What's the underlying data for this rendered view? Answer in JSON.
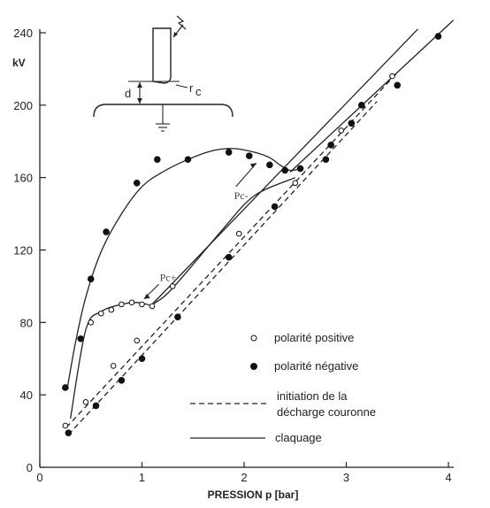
{
  "chart_data": {
    "type": "scatter",
    "title": "",
    "xlabel": "PRESSION p [bar]",
    "ylabel": "kV",
    "xlim": [
      0,
      4
    ],
    "ylim": [
      0,
      240
    ],
    "x_ticks": [
      0,
      1,
      2,
      3,
      4
    ],
    "y_ticks": [
      0,
      40,
      80,
      120,
      160,
      200,
      240
    ],
    "grid": false,
    "legend_position": "bottom-right",
    "series": [
      {
        "name": "polarité positive",
        "marker": "open-circle",
        "x": [
          0.25,
          0.45,
          0.5,
          0.6,
          0.7,
          0.8,
          0.9,
          1.0,
          1.1,
          0.72,
          0.95,
          1.3,
          1.95,
          2.5,
          2.95,
          3.45
        ],
        "y": [
          23,
          36,
          80,
          85,
          87,
          90,
          91,
          90,
          89,
          56,
          70,
          100,
          129,
          157,
          186,
          216
        ]
      },
      {
        "name": "polarité négative",
        "marker": "filled-circle",
        "x": [
          0.25,
          0.4,
          0.5,
          0.65,
          0.95,
          1.15,
          1.45,
          1.85,
          2.05,
          2.25,
          2.4,
          2.55,
          0.28,
          0.55,
          0.8,
          1.0,
          1.35,
          1.85,
          2.3,
          2.8,
          3.05,
          3.5,
          3.9,
          2.85,
          3.15
        ],
        "y": [
          44,
          71,
          104,
          130,
          157,
          170,
          170,
          174,
          172,
          167,
          164,
          165,
          19,
          34,
          48,
          60,
          83,
          116,
          144,
          170,
          190,
          211,
          238,
          178,
          200
        ]
      }
    ],
    "curves": [
      {
        "name": "positive_corona",
        "style": "solid",
        "x": [
          0.3,
          0.45,
          0.6,
          0.8,
          0.95,
          1.05,
          1.1,
          1.25,
          1.5,
          1.8,
          2.1,
          2.5
        ],
        "y": [
          27,
          76,
          86,
          90,
          91,
          90,
          90,
          96,
          112,
          132,
          150,
          160
        ]
      },
      {
        "name": "negative_corona",
        "style": "solid",
        "x": [
          0.27,
          0.35,
          0.45,
          0.6,
          0.8,
          1.0,
          1.2,
          1.45,
          1.7,
          1.9,
          2.1,
          2.25,
          2.35,
          2.45,
          2.55
        ],
        "y": [
          44,
          69,
          94,
          119,
          140,
          155,
          163,
          170,
          175,
          176,
          174,
          171,
          167,
          164,
          165
        ]
      },
      {
        "name": "claquage_positive",
        "style": "solid",
        "x": [
          1.1,
          3.7
        ],
        "y": [
          90,
          242
        ]
      },
      {
        "name": "claquage_negative",
        "style": "solid",
        "x": [
          2.45,
          4.05
        ],
        "y": [
          163,
          247
        ]
      },
      {
        "name": "initiation_positive",
        "style": "dashed",
        "x": [
          0.26,
          3.5
        ],
        "y": [
          22,
          218
        ]
      },
      {
        "name": "initiation_negative",
        "style": "dashed",
        "x": [
          0.28,
          3.3
        ],
        "y": [
          18,
          202
        ]
      }
    ],
    "annotations": [
      {
        "text": "Pc+",
        "x": 1.2,
        "y": 103
      },
      {
        "text": "Pc-",
        "x": 1.85,
        "y": 152
      }
    ],
    "legend": [
      {
        "label": "polarité positive",
        "symbol": "open-circle"
      },
      {
        "label": "polarité négative",
        "symbol": "filled-circle"
      },
      {
        "label": "initiation de la\ndécharge couronne",
        "symbol": "dashed-line"
      },
      {
        "label": "claquage",
        "symbol": "solid-line"
      }
    ],
    "inset": {
      "labels": [
        "d",
        "r",
        "c"
      ]
    }
  }
}
